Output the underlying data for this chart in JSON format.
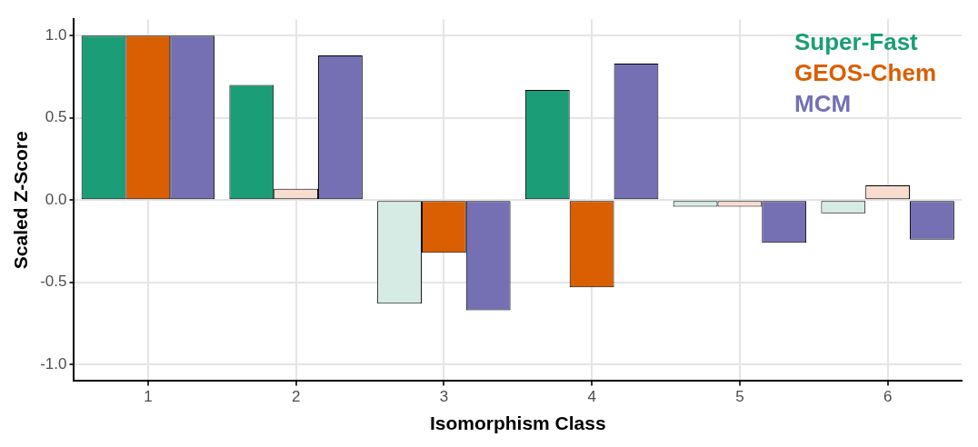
{
  "chart_data": {
    "type": "bar",
    "xlabel": "Isomorphism Class",
    "ylabel": "Scaled Z-Score",
    "categories": [
      "1",
      "2",
      "3",
      "4",
      "5",
      "6"
    ],
    "series": [
      {
        "name": "Super-Fast",
        "color": "#1b9e77",
        "colors": [
          "#1b9e77",
          "#1b9e77",
          "#d6ebe4",
          "#1b9e77",
          "#d6ebe4",
          "#d6ebe4"
        ],
        "values": [
          1.0,
          0.7,
          -0.63,
          0.67,
          -0.04,
          -0.08
        ]
      },
      {
        "name": "GEOS-Chem",
        "color": "#d95f02",
        "colors": [
          "#d95f02",
          "#f9dcd0",
          "#d95f02",
          "#d95f02",
          "#f9dcd0",
          "#f9dcd0"
        ],
        "values": [
          1.0,
          0.07,
          -0.32,
          -0.53,
          -0.04,
          0.09
        ]
      },
      {
        "name": "MCM",
        "color": "#7570b3",
        "colors": [
          "#7570b3",
          "#7570b3",
          "#7570b3",
          "#7570b3",
          "#7570b3",
          "#7570b3"
        ],
        "values": [
          1.0,
          0.88,
          -0.67,
          0.83,
          -0.26,
          -0.24
        ]
      }
    ],
    "ylim": [
      -1.1,
      1.1
    ],
    "yticks": [
      {
        "value": -1,
        "label": "-1.0"
      },
      {
        "value": -0.5,
        "label": "-0.5"
      },
      {
        "value": 0,
        "label": "0.0"
      },
      {
        "value": 0.5,
        "label": "0.5"
      },
      {
        "value": 1,
        "label": "1.0"
      }
    ],
    "grid": true,
    "legend": "top right"
  }
}
